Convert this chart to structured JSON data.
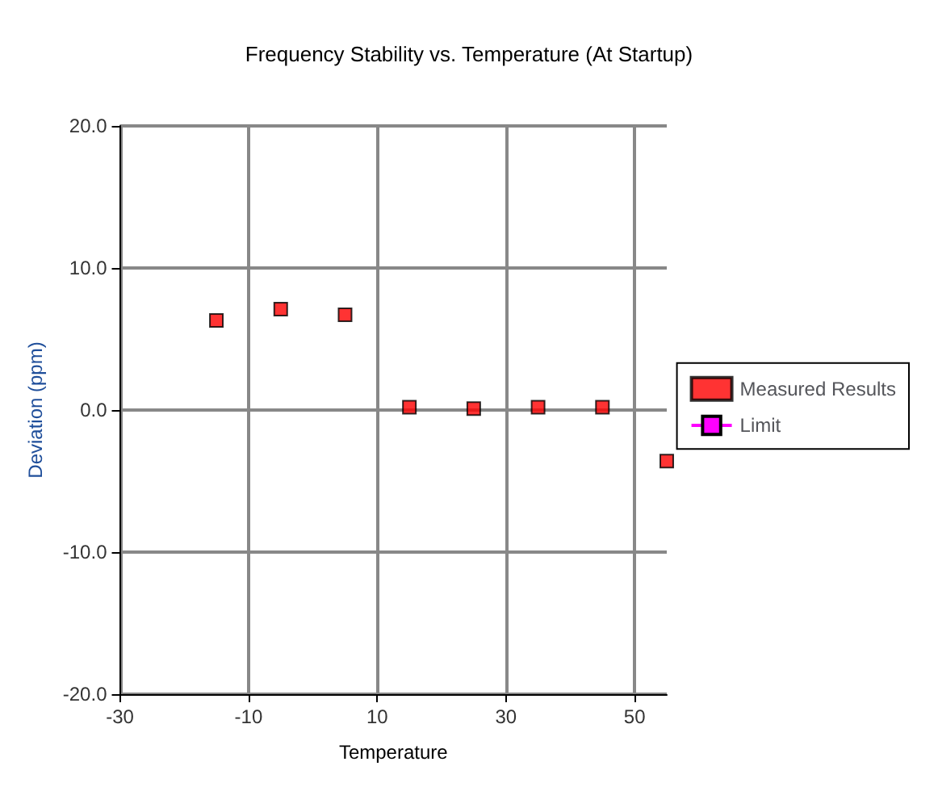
{
  "chart_data": {
    "type": "scatter",
    "title": "Frequency Stability vs. Temperature (At Startup)",
    "xlabel": "Temperature",
    "ylabel": "Deviation (ppm)",
    "x": [
      -15,
      -5,
      5,
      15,
      25,
      35,
      45,
      55
    ],
    "series": [
      {
        "name": "Measured Results",
        "color": "#ff0000",
        "values": [
          6.3,
          7.1,
          6.7,
          0.2,
          0.1,
          0.2,
          0.2,
          -3.6
        ]
      },
      {
        "name": "Limit",
        "color": "#ff00ff",
        "type": "line",
        "values": [
          null,
          null,
          null,
          null,
          null,
          null,
          null,
          null
        ]
      }
    ],
    "xlim": [
      -30,
      55
    ],
    "xticks": [
      -30,
      -10,
      10,
      30,
      50
    ],
    "ylim": [
      -20,
      20
    ],
    "yticks": [
      {
        "value": -20,
        "label": "-20.0"
      },
      {
        "value": -10,
        "label": "-10.0"
      },
      {
        "value": 0,
        "label": "0.0"
      },
      {
        "value": 10,
        "label": "10.0"
      },
      {
        "value": 20,
        "label": "20.0"
      }
    ],
    "grid": true,
    "legend": "right",
    "marker": "square"
  }
}
